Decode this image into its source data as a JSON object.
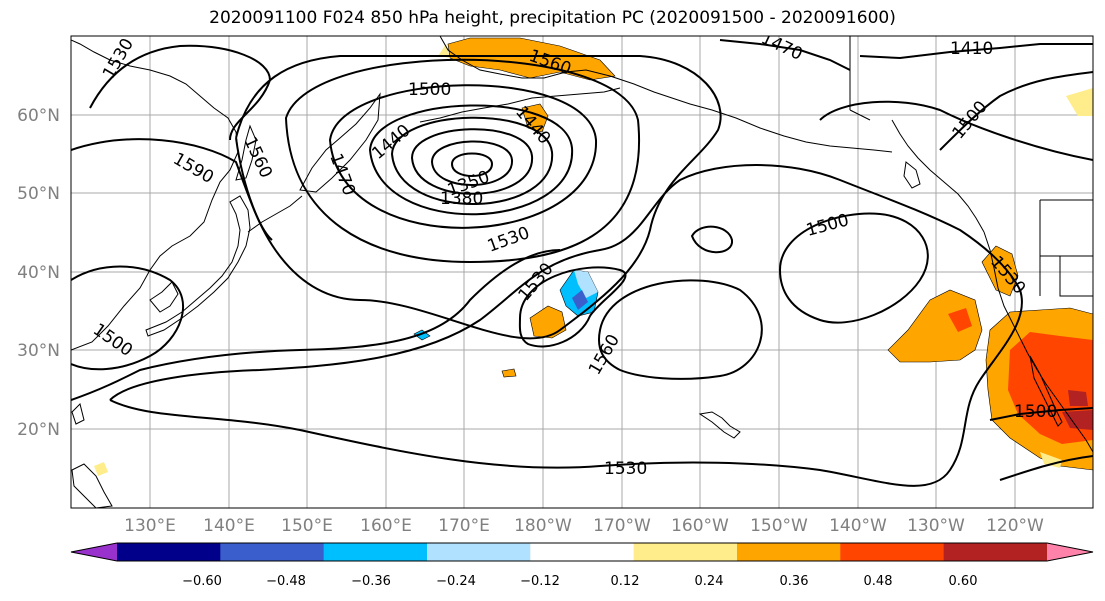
{
  "title": "2020091100 F024 850 hPa height, precipitation PC (2020091500 - 2020091600)",
  "lat_labels": [
    "60°N",
    "50°N",
    "40°N",
    "30°N",
    "20°N"
  ],
  "lon_labels": [
    "130°E",
    "140°E",
    "150°E",
    "160°E",
    "170°E",
    "180°W",
    "170°W",
    "160°W",
    "150°W",
    "140°W",
    "130°W",
    "120°W"
  ],
  "contour_labels": [
    "1530",
    "1500",
    "1560",
    "1440",
    "1470",
    "1410",
    "1500",
    "1590",
    "1560",
    "1470",
    "1440",
    "1350",
    "1380",
    "1530",
    "1500",
    "1530",
    "1560",
    "1500",
    "1530",
    "1500",
    "1530"
  ],
  "colorbar": {
    "colors": [
      "#9932cc",
      "#00008b",
      "#3a5fcd",
      "#00bfff",
      "#b0e2ff",
      "#ffffff",
      "#ffec8b",
      "#ffa500",
      "#ff4500",
      "#b22222",
      "#ff82ab"
    ],
    "tick_labels": [
      "−0.60",
      "−0.48",
      "−0.36",
      "−0.24",
      "−0.12",
      "0.12",
      "0.24",
      "0.36",
      "0.48",
      "0.60"
    ]
  }
}
